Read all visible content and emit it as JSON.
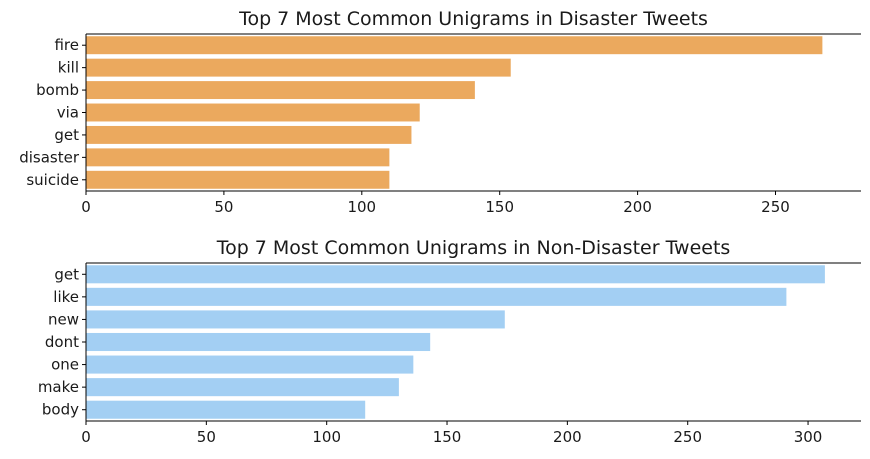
{
  "chart_data": [
    {
      "type": "bar",
      "orientation": "horizontal",
      "title": "Top 7 Most Common Unigrams in Disaster Tweets",
      "xlabel": "",
      "ylabel": "",
      "categories": [
        "fire",
        "kill",
        "bomb",
        "via",
        "get",
        "disaster",
        "suicide"
      ],
      "values": [
        267,
        154,
        141,
        121,
        118,
        110,
        110
      ],
      "xlim": [
        0,
        281
      ],
      "xticks": [
        0,
        50,
        100,
        150,
        200,
        250
      ],
      "color": "#eba95e",
      "grid": false
    },
    {
      "type": "bar",
      "orientation": "horizontal",
      "title": "Top 7 Most Common Unigrams in Non-Disaster Tweets",
      "xlabel": "",
      "ylabel": "",
      "categories": [
        "get",
        "like",
        "new",
        "dont",
        "one",
        "make",
        "body"
      ],
      "values": [
        307,
        291,
        174,
        143,
        136,
        130,
        116
      ],
      "xlim": [
        0,
        322
      ],
      "xticks": [
        0,
        50,
        100,
        150,
        200,
        250,
        300
      ],
      "color": "#a3cff3",
      "grid": false
    }
  ]
}
